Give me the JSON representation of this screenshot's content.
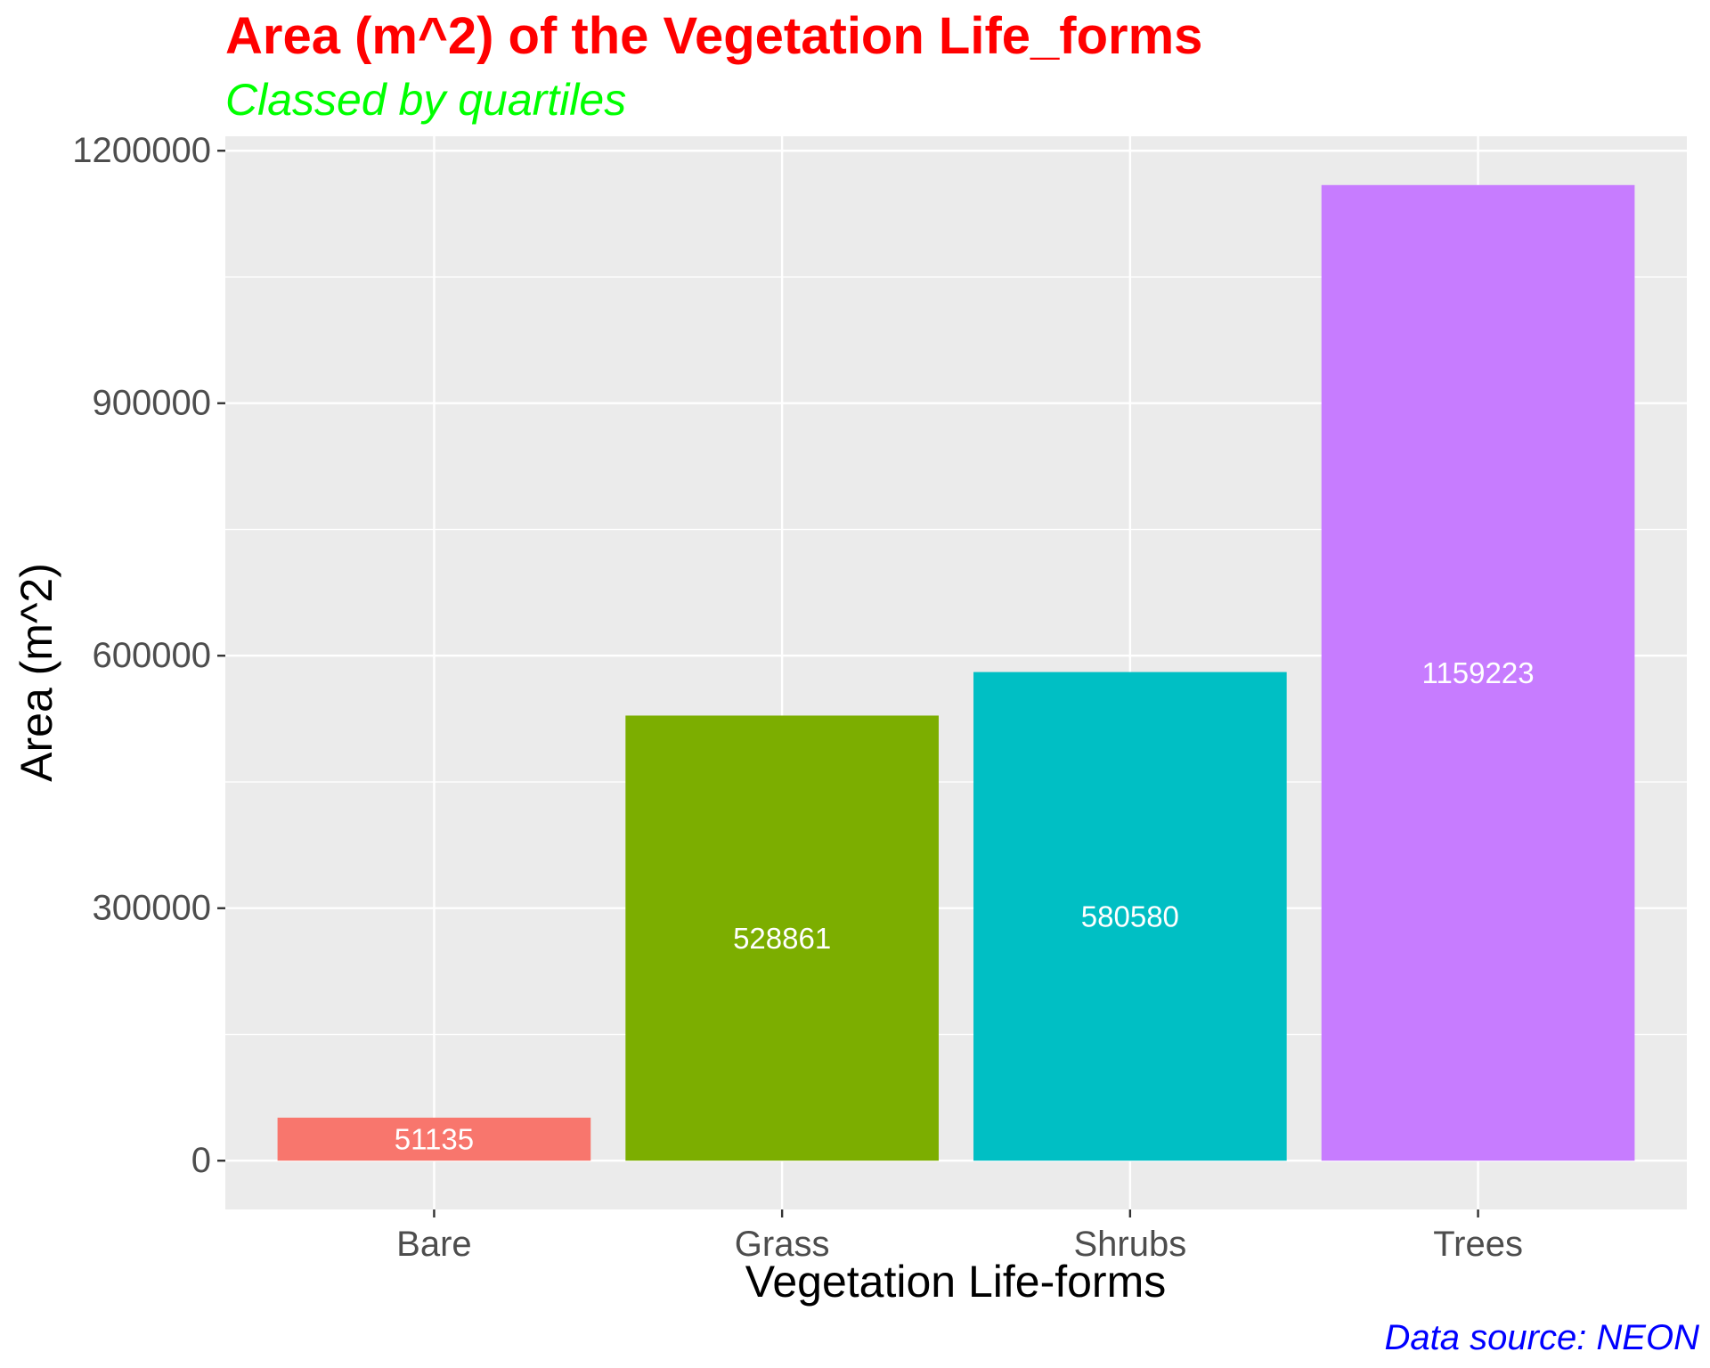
{
  "chart_data": {
    "type": "bar",
    "title": "Area (m^2) of the Vegetation Life_forms",
    "subtitle": "Classed by quartiles",
    "caption": "Data source: NEON",
    "xlabel": "Vegetation Life-forms",
    "ylabel": "Area (m^2)",
    "categories": [
      "Bare",
      "Grass",
      "Shrubs",
      "Trees"
    ],
    "values": [
      51135,
      528861,
      580580,
      1159223
    ],
    "data_labels": [
      "51135",
      "528861",
      "580580",
      "1159223"
    ],
    "bar_colors": [
      "#F8766D",
      "#7CAE00",
      "#00BFC4",
      "#C77CFF"
    ],
    "yticks": [
      0,
      300000,
      600000,
      900000,
      1200000
    ],
    "ytick_labels": [
      "0",
      "300000",
      "600000",
      "900000",
      "1200000"
    ],
    "ylim": [
      -57961,
      1217184
    ],
    "grid": true,
    "legend": "none",
    "colors": {
      "title": "#FF0000",
      "subtitle": "#00FF00",
      "caption": "#0000FF",
      "panel_background": "#EBEBEB",
      "grid": "#FFFFFF"
    }
  }
}
